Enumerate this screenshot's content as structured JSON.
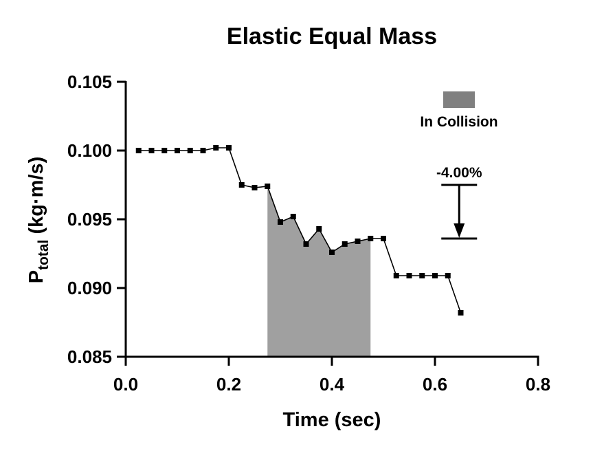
{
  "chart_data": {
    "type": "line",
    "title": "Elastic Equal Mass",
    "xlabel": "Time (sec)",
    "ylabel": {
      "main": "P",
      "subscript": "total",
      "units": " (kg·m/s)"
    },
    "xlim": [
      0.0,
      0.8
    ],
    "ylim": [
      0.085,
      0.105
    ],
    "x_ticks": [
      "0.0",
      "0.2",
      "0.4",
      "0.6",
      "0.8"
    ],
    "x_tick_values": [
      0.0,
      0.2,
      0.4,
      0.6,
      0.8
    ],
    "y_ticks": [
      "0.085",
      "0.090",
      "0.095",
      "0.100",
      "0.105"
    ],
    "y_tick_values": [
      0.085,
      0.09,
      0.095,
      0.1,
      0.105
    ],
    "grid": false,
    "series": [
      {
        "marker": "square",
        "color": "#000000",
        "x": [
          0.025,
          0.05,
          0.075,
          0.1,
          0.125,
          0.15,
          0.175,
          0.2,
          0.225,
          0.25,
          0.275,
          0.3,
          0.325,
          0.35,
          0.375,
          0.4,
          0.425,
          0.45,
          0.475,
          0.5,
          0.525,
          0.55,
          0.575,
          0.6,
          0.625,
          0.65
        ],
        "y": [
          0.1,
          0.1,
          0.1,
          0.1,
          0.1,
          0.1,
          0.1002,
          0.1002,
          0.0975,
          0.0973,
          0.0974,
          0.0948,
          0.0952,
          0.0932,
          0.0943,
          0.0926,
          0.0932,
          0.0934,
          0.0936,
          0.0936,
          0.0909,
          0.0909,
          0.0909,
          0.0909,
          0.0909,
          0.0882
        ]
      }
    ],
    "shaded_region": {
      "x_start": 0.275,
      "x_end": 0.475,
      "color": "#a0a0a0",
      "label": "In Collision"
    },
    "legend": {
      "position": "top-right",
      "label": "In Collision",
      "swatch_color": "#808080"
    },
    "annotation": {
      "text": "-4.00%",
      "x": 0.647,
      "y_top": 0.0975,
      "y_bottom": 0.0936
    }
  }
}
